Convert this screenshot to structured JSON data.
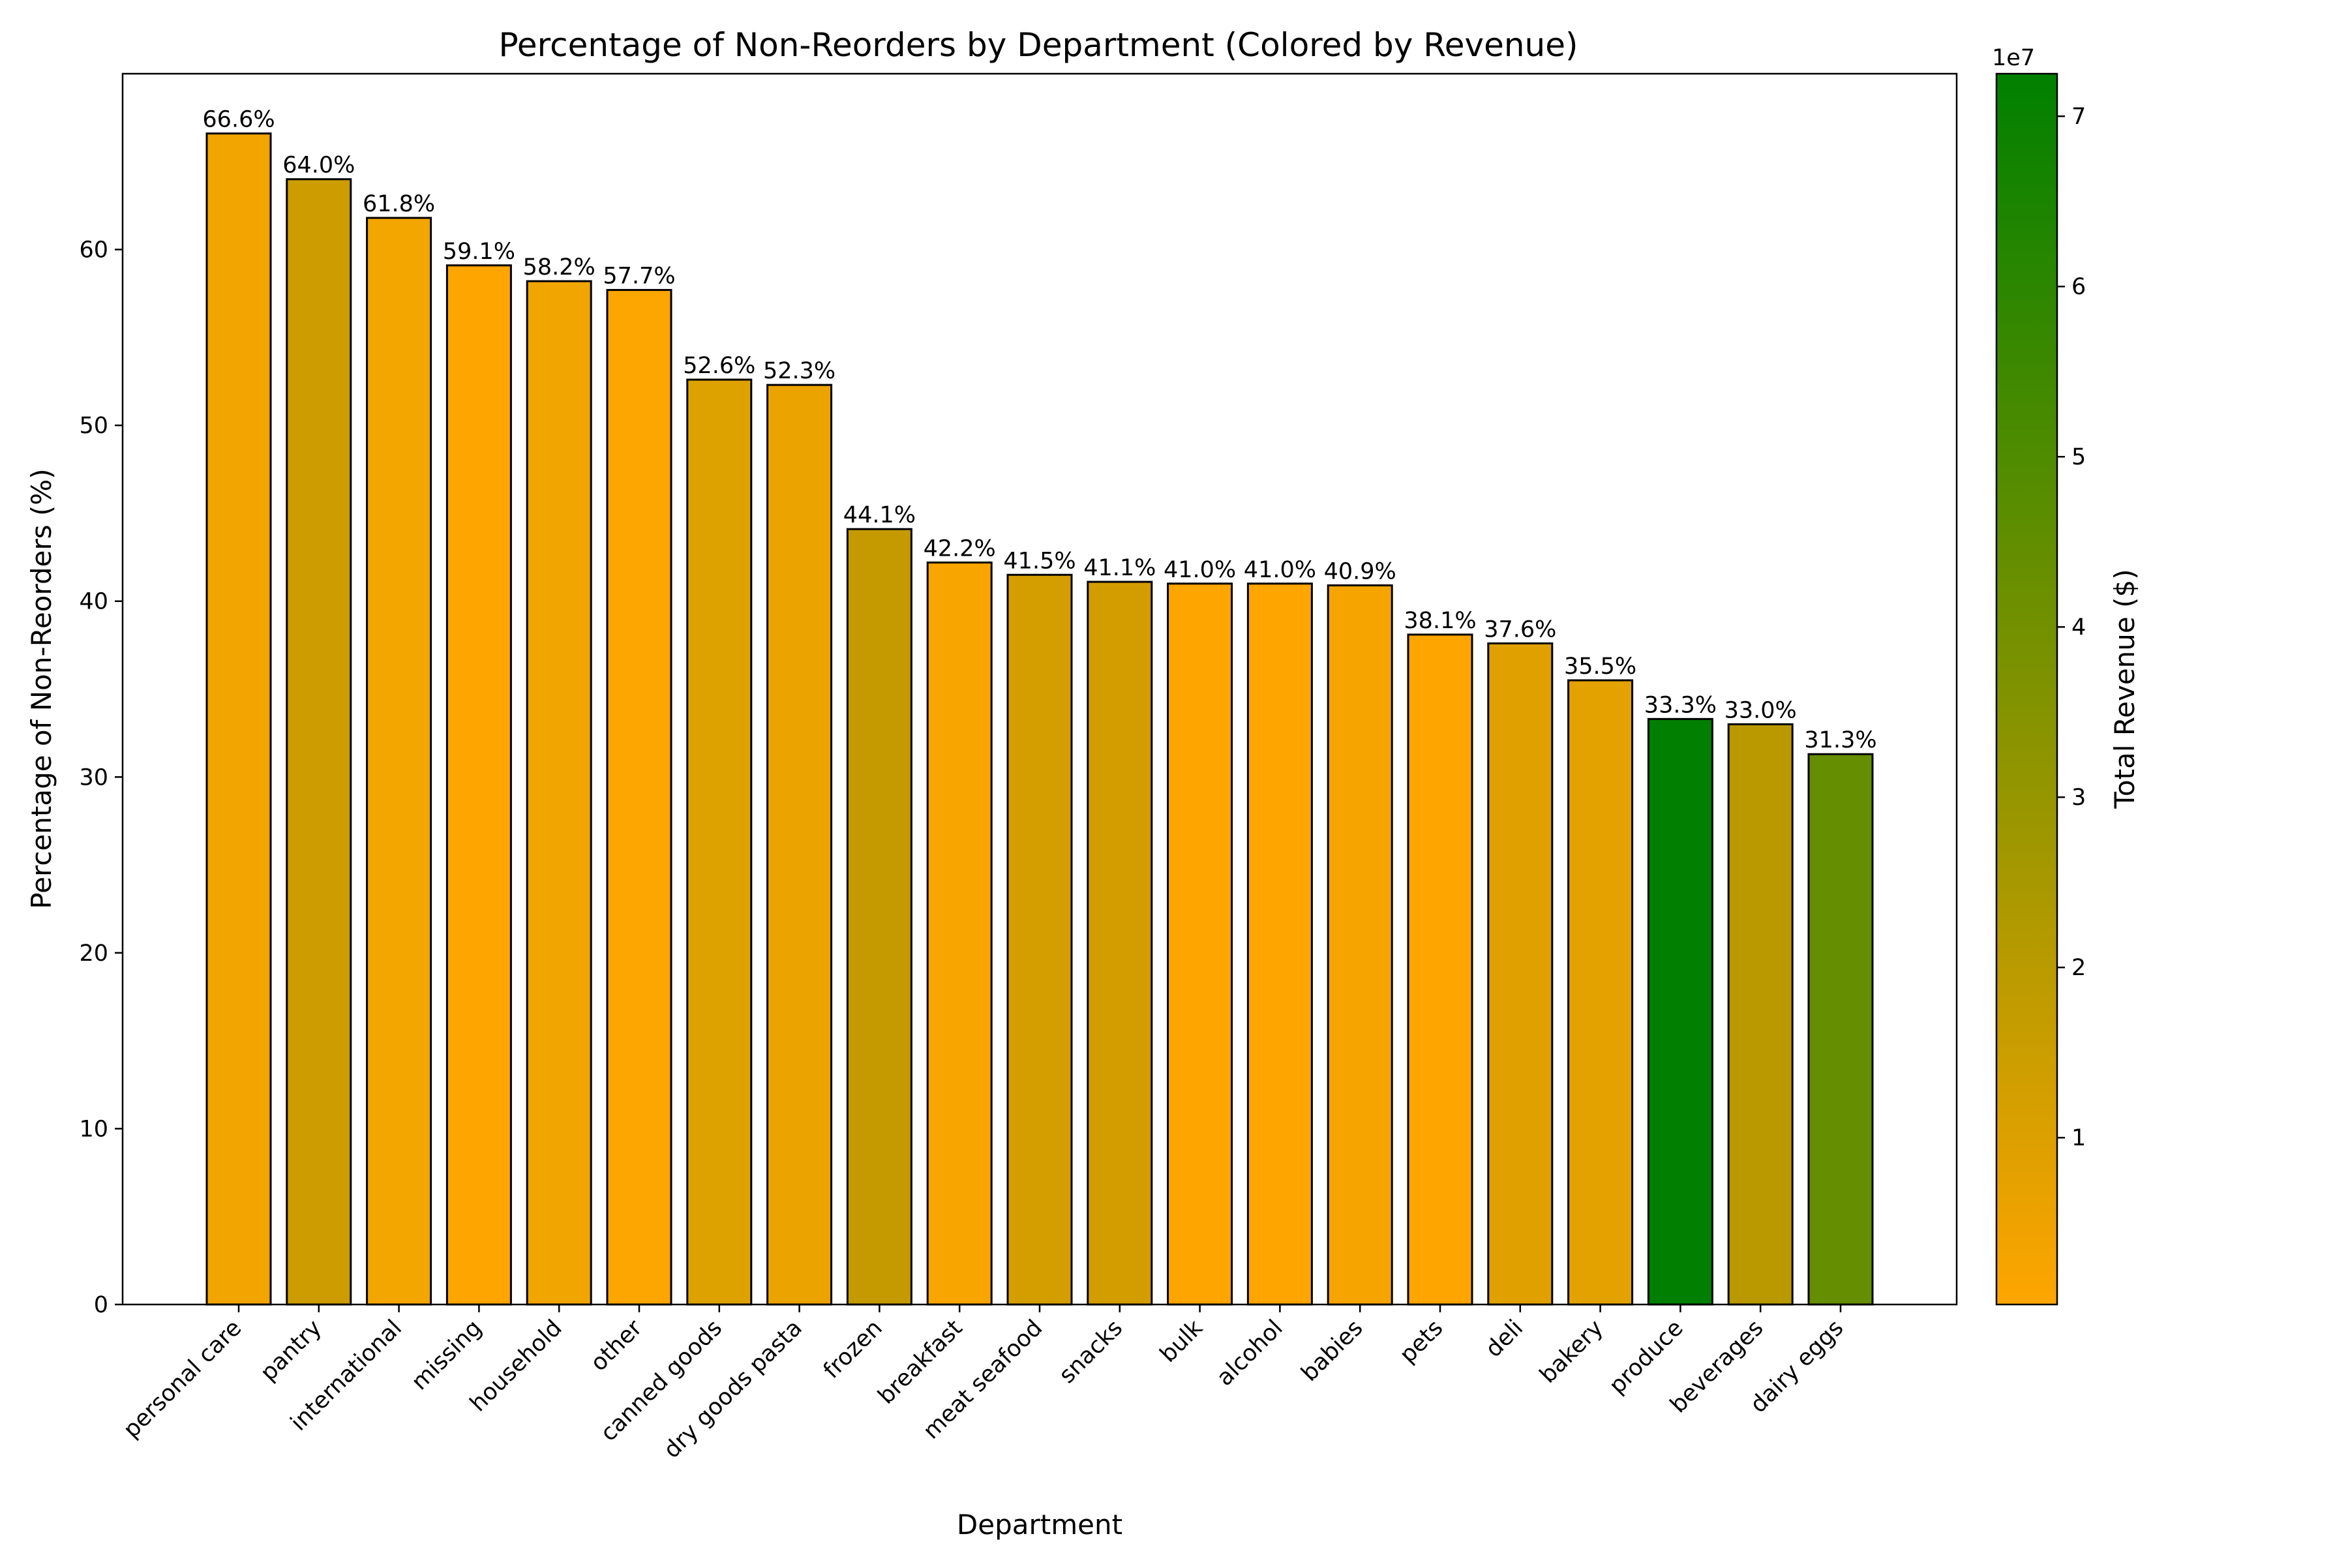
{
  "chart_data": {
    "type": "bar",
    "title": "Percentage of Non-Reorders by Department (Colored by Revenue)",
    "xlabel": "Department",
    "ylabel": "Percentage of Non-Reorders (%)",
    "ylim": [
      0,
      70
    ],
    "yticks": [
      0,
      10,
      20,
      30,
      40,
      50,
      60
    ],
    "categories": [
      "personal care",
      "pantry",
      "international",
      "missing",
      "household",
      "other",
      "canned goods",
      "dry goods pasta",
      "frozen",
      "breakfast",
      "meat seafood",
      "snacks",
      "bulk",
      "alcohol",
      "babies",
      "pets",
      "deli",
      "bakery",
      "produce",
      "beverages",
      "dairy eggs"
    ],
    "values": [
      66.6,
      64.0,
      61.8,
      59.1,
      58.2,
      57.7,
      52.6,
      52.3,
      44.1,
      42.2,
      41.5,
      41.1,
      41.0,
      41.0,
      40.9,
      38.1,
      37.6,
      35.5,
      33.3,
      33.0,
      31.3
    ],
    "value_labels": [
      "66.6%",
      "64.0%",
      "61.8%",
      "59.1%",
      "58.2%",
      "57.7%",
      "52.6%",
      "52.3%",
      "44.1%",
      "42.2%",
      "41.5%",
      "41.1%",
      "41.0%",
      "41.0%",
      "40.9%",
      "38.1%",
      "37.6%",
      "35.5%",
      "33.3%",
      "33.0%",
      "31.3%"
    ],
    "revenue_estimates": [
      0.43,
      1.95,
      0.57,
      0.05,
      0.9,
      0.07,
      1.35,
      1.05,
      2.55,
      0.6,
      1.65,
      1.6,
      0.05,
      0.15,
      0.35,
      0.15,
      1.45,
      1.35,
      7.2,
      2.4,
      4.5
    ],
    "bar_colors": [
      "#f2a500",
      "#cc9c00",
      "#f3a600",
      "#ffa500",
      "#f1a500",
      "#fda500",
      "#dea200",
      "#eba300",
      "#c49a00",
      "#f9a500",
      "#d49e00",
      "#d39d00",
      "#ffa500",
      "#fea500",
      "#f6a500",
      "#ffa500",
      "#e0a100",
      "#e3a200",
      "#007f00",
      "#b99800",
      "#658e00"
    ],
    "grid": false,
    "colorbar": {
      "label": "Total Revenue ($)",
      "ticks": [
        "1",
        "2",
        "3",
        "4",
        "5",
        "6",
        "7"
      ],
      "tick_values": [
        1,
        2,
        3,
        4,
        5,
        6,
        7
      ],
      "multiplier": "1e7",
      "range": [
        0.02,
        7.25
      ],
      "color_low": "#ffa500",
      "color_high": "#008000"
    }
  }
}
